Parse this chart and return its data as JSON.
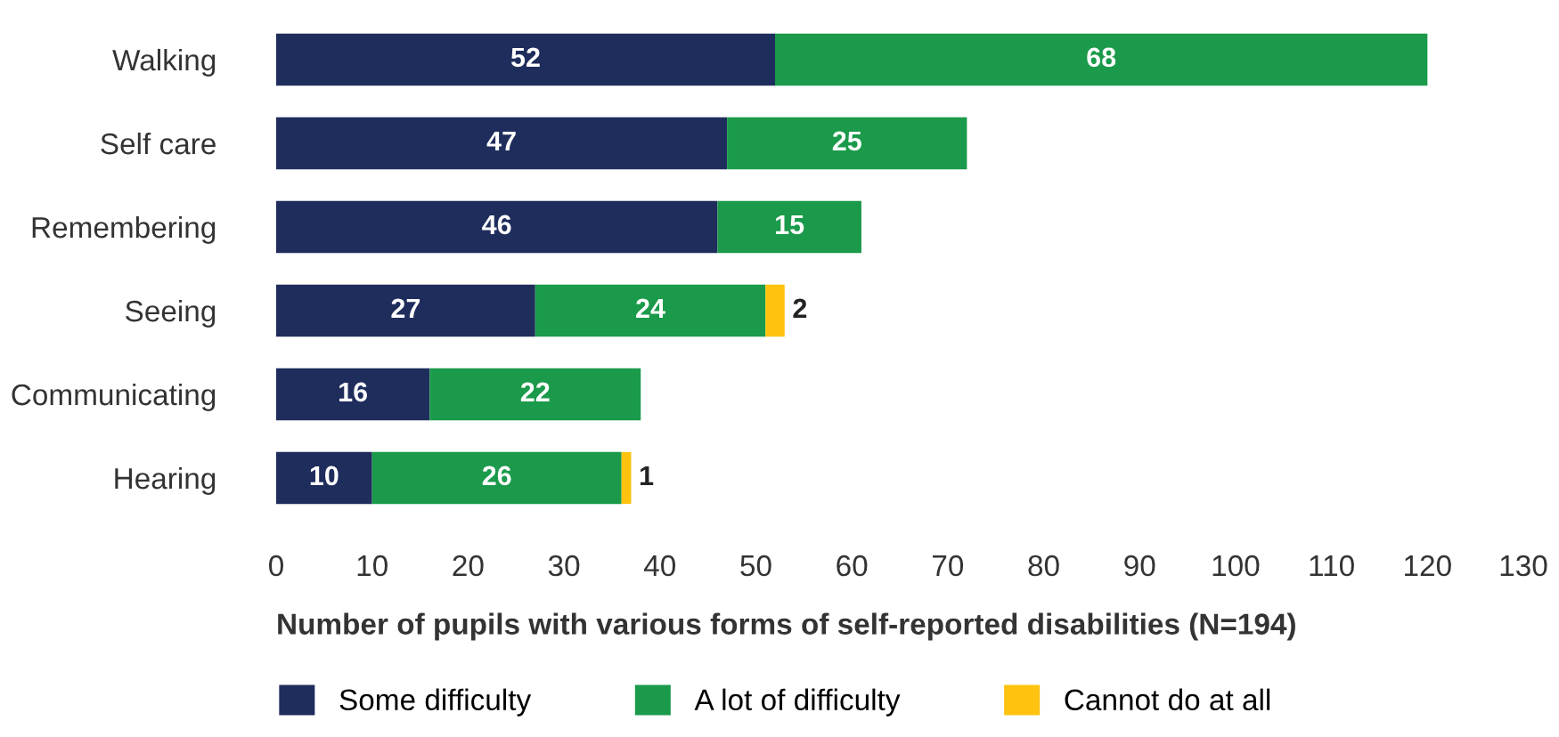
{
  "chart_data": {
    "type": "bar",
    "orientation": "horizontal",
    "stacked": true,
    "categories": [
      "Walking",
      "Self care",
      "Remembering",
      "Seeing",
      "Communicating",
      "Hearing"
    ],
    "series": [
      {
        "name": "Some difficulty",
        "color": "#1f2d5c",
        "values": [
          52,
          47,
          46,
          27,
          16,
          10
        ]
      },
      {
        "name": "A lot of difficulty",
        "color": "#1a9a4a",
        "values": [
          68,
          25,
          15,
          24,
          22,
          26
        ]
      },
      {
        "name": "Cannot do at all",
        "color": "#ffc20e",
        "values": [
          null,
          null,
          null,
          2,
          null,
          1
        ]
      }
    ],
    "data_labels": true,
    "xlim": [
      0,
      130
    ],
    "xticks": [
      0,
      10,
      20,
      30,
      40,
      50,
      60,
      70,
      80,
      90,
      100,
      110,
      120,
      130
    ],
    "xlabel": "Number of pupils with various forms of self-reported disabilities (N=194)",
    "grid": false,
    "legend": "bottom"
  }
}
